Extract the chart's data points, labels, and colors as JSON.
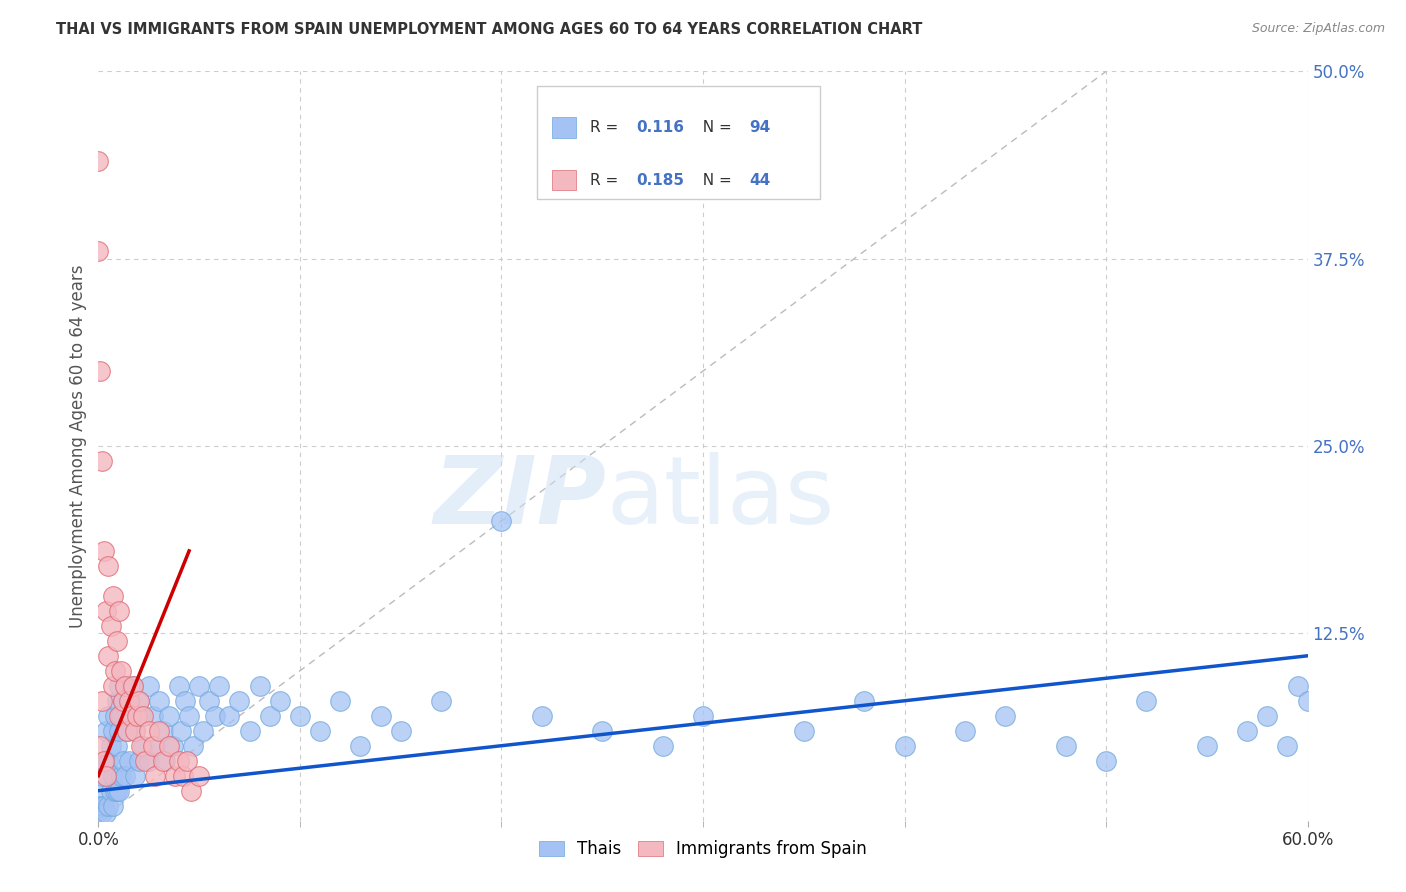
{
  "title": "THAI VS IMMIGRANTS FROM SPAIN UNEMPLOYMENT AMONG AGES 60 TO 64 YEARS CORRELATION CHART",
  "source": "Source: ZipAtlas.com",
  "ylabel": "Unemployment Among Ages 60 to 64 years",
  "xlim": [
    0.0,
    0.6
  ],
  "ylim": [
    0.0,
    0.5
  ],
  "blue_color": "#a4c2f4",
  "blue_edge": "#6fa8dc",
  "pink_color": "#f4b8c1",
  "pink_edge": "#e06c75",
  "trend_blue": "#1155cc",
  "trend_pink": "#cc0000",
  "ref_line_color": "#bbbbbb",
  "legend_label_blue": "Thais",
  "legend_label_pink": "Immigrants from Spain",
  "watermark": "ZIPatlas",
  "background_color": "#ffffff",
  "grid_color": "#cccccc",
  "tick_color_right": "#4472c4",
  "ytick_labels": [
    "12.5%",
    "25.0%",
    "37.5%",
    "50.0%"
  ],
  "ytick_vals": [
    0.125,
    0.25,
    0.375,
    0.5
  ],
  "xtick_labels": [
    "0.0%",
    "60.0%"
  ],
  "xtick_vals": [
    0.0,
    0.6
  ],
  "legend_R_blue": "0.116",
  "legend_N_blue": "94",
  "legend_R_pink": "0.185",
  "legend_N_pink": "44",
  "thai_x": [
    0.0,
    0.0,
    0.001,
    0.001,
    0.002,
    0.002,
    0.003,
    0.003,
    0.004,
    0.004,
    0.005,
    0.005,
    0.005,
    0.006,
    0.006,
    0.007,
    0.007,
    0.007,
    0.008,
    0.008,
    0.009,
    0.009,
    0.009,
    0.01,
    0.01,
    0.01,
    0.011,
    0.011,
    0.012,
    0.012,
    0.013,
    0.013,
    0.014,
    0.015,
    0.015,
    0.016,
    0.017,
    0.018,
    0.018,
    0.02,
    0.02,
    0.021,
    0.022,
    0.025,
    0.025,
    0.027,
    0.028,
    0.03,
    0.032,
    0.033,
    0.035,
    0.037,
    0.04,
    0.041,
    0.043,
    0.045,
    0.047,
    0.05,
    0.052,
    0.055,
    0.058,
    0.06,
    0.065,
    0.07,
    0.075,
    0.08,
    0.085,
    0.09,
    0.1,
    0.11,
    0.12,
    0.13,
    0.14,
    0.15,
    0.17,
    0.2,
    0.22,
    0.25,
    0.28,
    0.3,
    0.35,
    0.38,
    0.4,
    0.43,
    0.45,
    0.48,
    0.5,
    0.52,
    0.55,
    0.57,
    0.58,
    0.59,
    0.595,
    0.6
  ],
  "thai_y": [
    0.01,
    0.005,
    0.02,
    0.01,
    0.03,
    0.005,
    0.04,
    0.01,
    0.06,
    0.005,
    0.07,
    0.04,
    0.01,
    0.05,
    0.02,
    0.06,
    0.03,
    0.01,
    0.07,
    0.02,
    0.08,
    0.05,
    0.02,
    0.09,
    0.06,
    0.02,
    0.07,
    0.03,
    0.08,
    0.04,
    0.09,
    0.03,
    0.06,
    0.08,
    0.04,
    0.07,
    0.09,
    0.06,
    0.03,
    0.08,
    0.04,
    0.07,
    0.05,
    0.09,
    0.04,
    0.07,
    0.05,
    0.08,
    0.06,
    0.04,
    0.07,
    0.05,
    0.09,
    0.06,
    0.08,
    0.07,
    0.05,
    0.09,
    0.06,
    0.08,
    0.07,
    0.09,
    0.07,
    0.08,
    0.06,
    0.09,
    0.07,
    0.08,
    0.07,
    0.06,
    0.08,
    0.05,
    0.07,
    0.06,
    0.08,
    0.2,
    0.07,
    0.06,
    0.05,
    0.07,
    0.06,
    0.08,
    0.05,
    0.06,
    0.07,
    0.05,
    0.04,
    0.08,
    0.05,
    0.06,
    0.07,
    0.05,
    0.09,
    0.08
  ],
  "spain_x": [
    0.0,
    0.0,
    0.001,
    0.001,
    0.002,
    0.002,
    0.003,
    0.003,
    0.004,
    0.004,
    0.005,
    0.005,
    0.006,
    0.007,
    0.007,
    0.008,
    0.009,
    0.01,
    0.01,
    0.011,
    0.012,
    0.013,
    0.014,
    0.015,
    0.016,
    0.017,
    0.018,
    0.019,
    0.02,
    0.021,
    0.022,
    0.023,
    0.025,
    0.027,
    0.028,
    0.03,
    0.032,
    0.035,
    0.038,
    0.04,
    0.042,
    0.044,
    0.046,
    0.05
  ],
  "spain_y": [
    0.44,
    0.38,
    0.3,
    0.05,
    0.24,
    0.08,
    0.18,
    0.04,
    0.14,
    0.03,
    0.17,
    0.11,
    0.13,
    0.15,
    0.09,
    0.1,
    0.12,
    0.14,
    0.07,
    0.1,
    0.08,
    0.09,
    0.06,
    0.08,
    0.07,
    0.09,
    0.06,
    0.07,
    0.08,
    0.05,
    0.07,
    0.04,
    0.06,
    0.05,
    0.03,
    0.06,
    0.04,
    0.05,
    0.03,
    0.04,
    0.03,
    0.04,
    0.02,
    0.03
  ]
}
